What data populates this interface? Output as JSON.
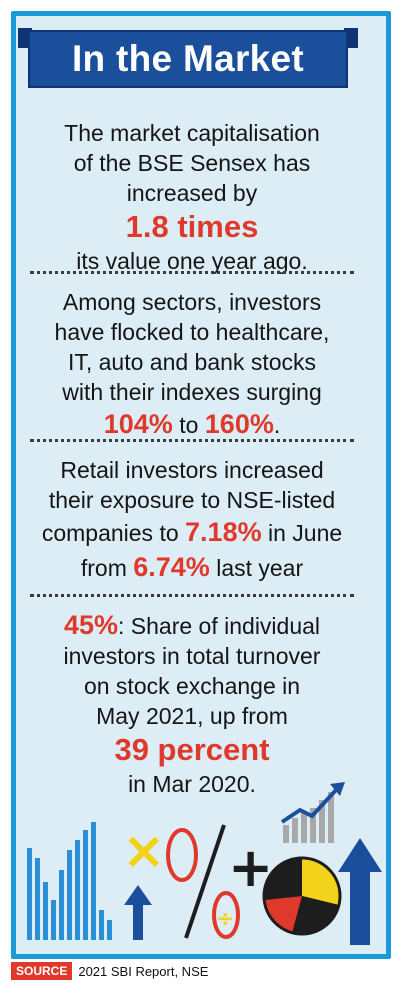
{
  "title": "In the Market",
  "facts": [
    {
      "line1": "The market capitalisation",
      "line2": "of the BSE Sensex has",
      "line3": "increased by",
      "highlight": "1.8 times",
      "line4": "its value one year ago."
    },
    {
      "line1": "Among sectors, investors",
      "line2": "have flocked to healthcare,",
      "line3": "IT, auto and bank stocks",
      "line4": "with their indexes surging",
      "hl_from": "104%",
      "connector": " to ",
      "hl_to": "160%",
      "end": "."
    },
    {
      "line1": "Retail investors increased",
      "line2": "their exposure to NSE-listed",
      "line3_pre": "companies to ",
      "hl_a": "7.18%",
      "line3_post": " in June",
      "line4_pre": "from ",
      "hl_b": "6.74%",
      "line4_post": " last year"
    },
    {
      "hl_lead": "45%",
      "line1_post": ": Share of individual",
      "line2": "investors in total turnover",
      "line3": "on stock exchange in",
      "line4": "May 2021, up from",
      "highlight": "39 percent",
      "line5": "in Mar 2020."
    }
  ],
  "illustration": {
    "symbols": [
      "×",
      "+",
      "÷"
    ],
    "colors": {
      "blue": "#1b4f9c",
      "light_blue": "#2a8fd6",
      "yellow": "#f2d21b",
      "red": "#e0392b",
      "dark": "#1d1d1d",
      "grey": "#a8a8a8"
    }
  },
  "source": {
    "tag": "SOURCE",
    "text": "2021 SBI Report, NSE"
  }
}
